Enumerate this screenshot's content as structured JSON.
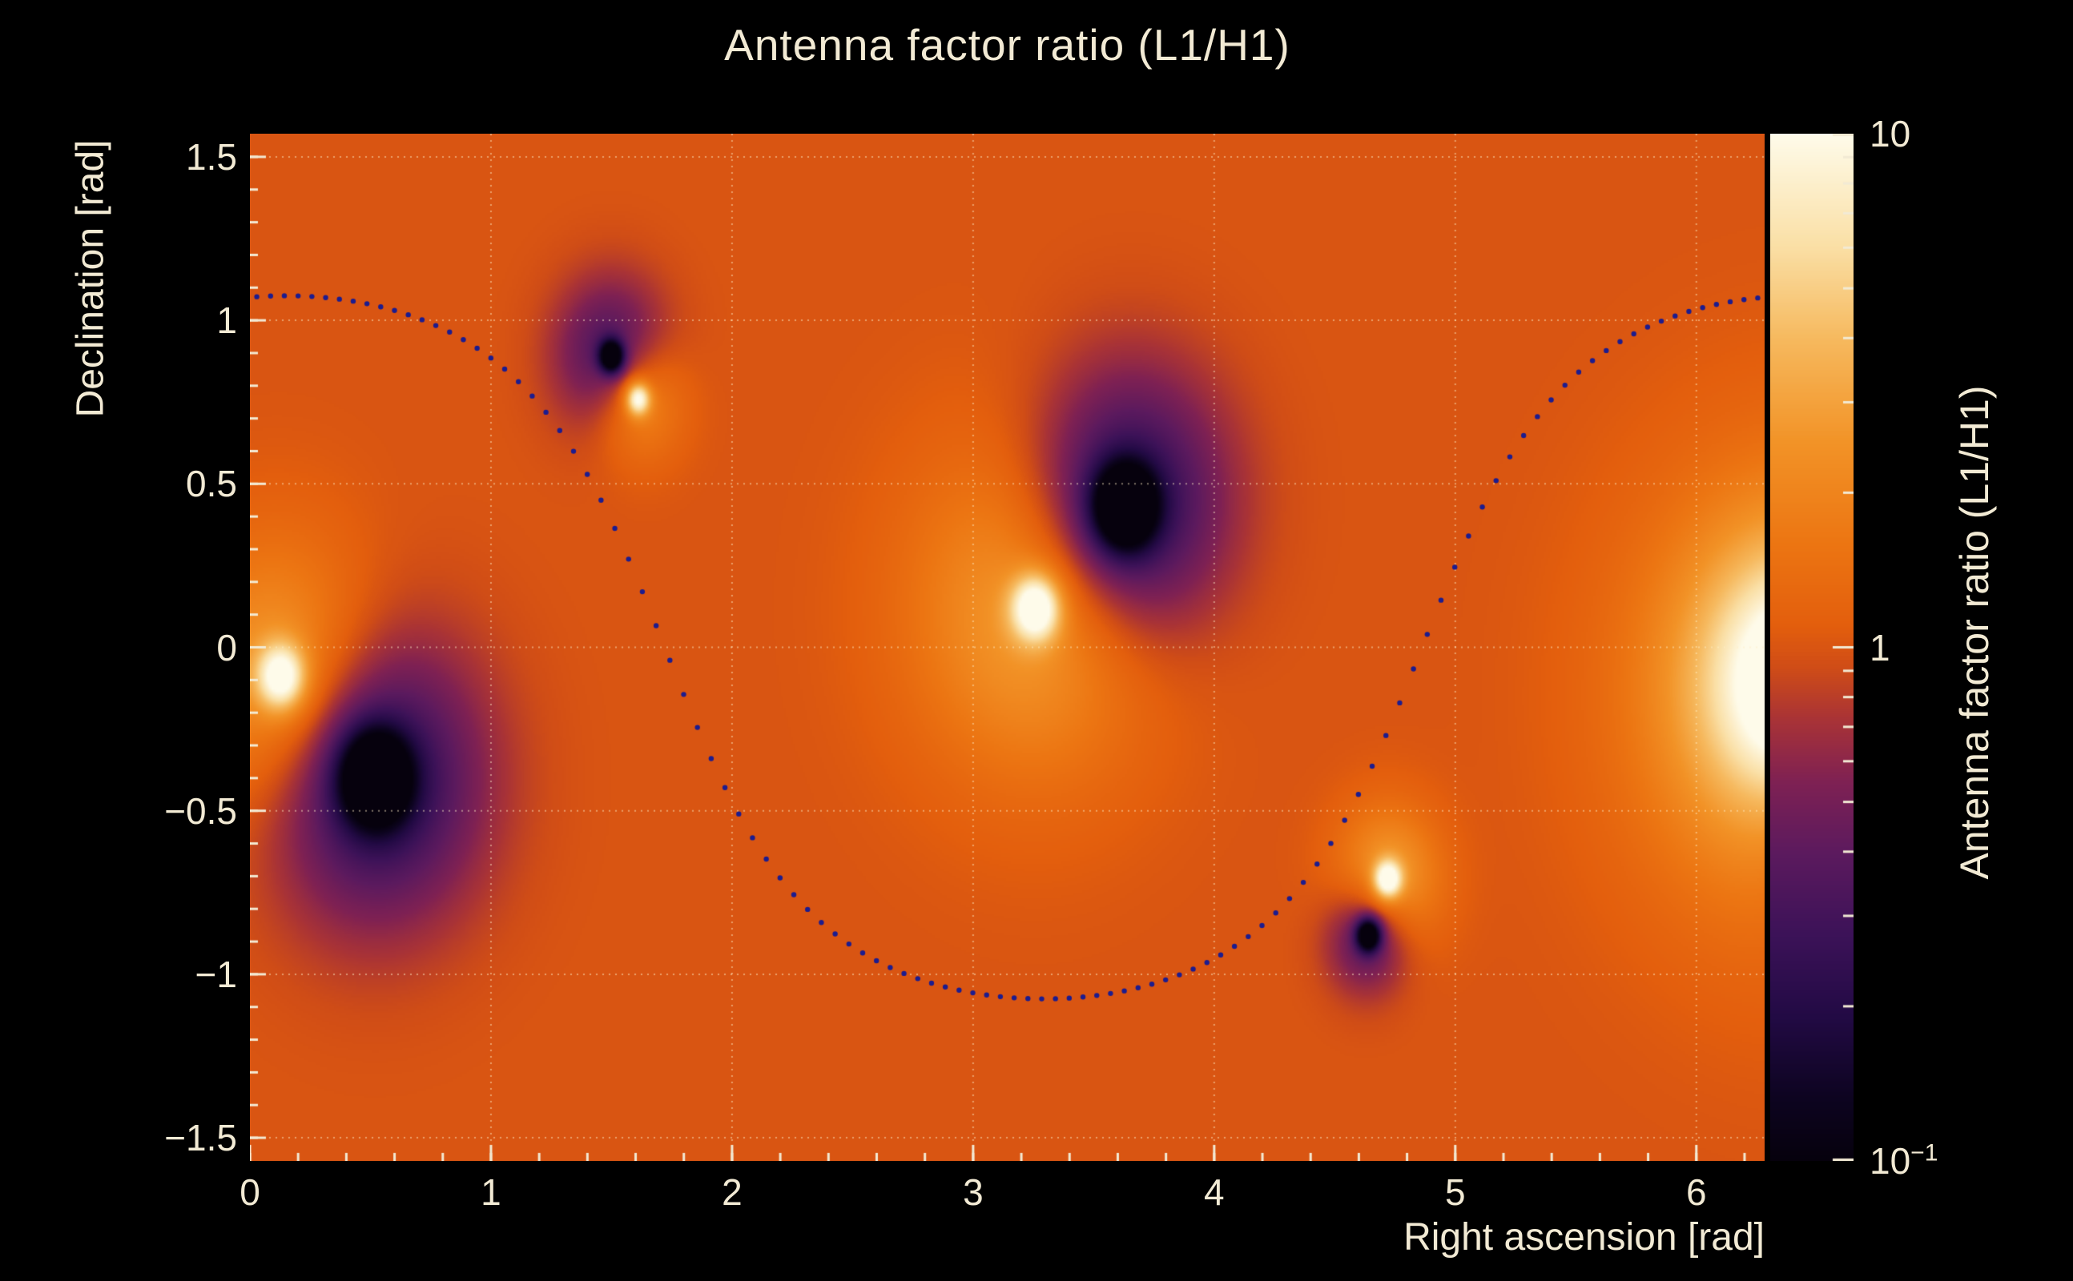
{
  "title": "Antenna factor ratio (L1/H1)",
  "x_axis": {
    "label": "Right ascension [rad]",
    "tick_values": [
      0,
      1,
      2,
      3,
      4,
      5,
      6
    ],
    "tick_labels": [
      "0",
      "1",
      "2",
      "3",
      "4",
      "5",
      "6"
    ],
    "minor_tick_step": 0.2
  },
  "y_axis": {
    "label": "Declination [rad]",
    "tick_values": [
      -1.5,
      -1,
      -0.5,
      0,
      0.5,
      1,
      1.5
    ],
    "tick_labels": [
      "−1.5",
      "−1",
      "−0.5",
      "0",
      "0.5",
      "1",
      "1.5"
    ],
    "minor_tick_step": 0.1
  },
  "colorbar": {
    "label": "Antenna factor ratio (L1/H1)",
    "scale": "log",
    "min": 0.1,
    "max": 10,
    "ticks": [
      {
        "value": 10,
        "base": "10",
        "exp": ""
      },
      {
        "value": 1,
        "base": "1",
        "exp": ""
      },
      {
        "value": 0.1,
        "base": "10",
        "exp": "−1"
      }
    ]
  },
  "chart_data": {
    "type": "heatmap",
    "title": "Antenna factor ratio (L1/H1)",
    "xlabel": "Right ascension [rad]",
    "ylabel": "Declination [rad]",
    "zlabel": "Antenna factor ratio (L1/H1)",
    "xlim": [
      0,
      6.2832
    ],
    "ylim": [
      -1.5708,
      1.5708
    ],
    "zlim": [
      0.1,
      10
    ],
    "zscale": "log",
    "grid_on": true,
    "base_value": 1.0,
    "description": "Sky map of the ratio of L1 to H1 antenna pattern magnitudes: uniform orange background near 1, with paired bright peaks (ratio up to 10) and dark nulls (ratio down to 0.1), plus a dotted dark-blue sinusoid-like track.",
    "features": [
      {
        "kind": "peak",
        "ra": 0.13,
        "dec": -0.09,
        "halo_amp": 0.5,
        "halo_sigma": 0.28,
        "core_amp": 0.9,
        "core_sigma": 0.07
      },
      {
        "kind": "null",
        "ra": 0.52,
        "dec": -0.4,
        "halo_amp": 0.75,
        "halo_sigma": 0.3,
        "core_amp": 1.2,
        "core_sigma": 0.1
      },
      {
        "kind": "null",
        "ra": 1.5,
        "dec": 0.89,
        "halo_amp": 0.55,
        "halo_sigma": 0.16,
        "core_amp": 1.1,
        "core_sigma": 0.035
      },
      {
        "kind": "peak",
        "ra": 1.61,
        "dec": 0.76,
        "halo_amp": 0.45,
        "halo_sigma": 0.13,
        "core_amp": 0.9,
        "core_sigma": 0.035
      },
      {
        "kind": "peak",
        "ra": 3.26,
        "dec": 0.12,
        "halo_amp": 0.5,
        "halo_sigma": 0.35,
        "core_amp": 1.0,
        "core_sigma": 0.07
      },
      {
        "kind": "null",
        "ra": 3.63,
        "dec": 0.43,
        "halo_amp": 0.8,
        "halo_sigma": 0.28,
        "core_amp": 1.2,
        "core_sigma": 0.09
      },
      {
        "kind": "peak",
        "ra": 4.72,
        "dec": -0.71,
        "halo_amp": 0.5,
        "halo_sigma": 0.15,
        "core_amp": 0.95,
        "core_sigma": 0.04
      },
      {
        "kind": "null",
        "ra": 4.64,
        "dec": -0.88,
        "halo_amp": 0.55,
        "halo_sigma": 0.12,
        "core_amp": 1.1,
        "core_sigma": 0.035
      },
      {
        "kind": "peak",
        "ra": 6.45,
        "dec": -0.15,
        "halo_amp": 0.7,
        "halo_sigma": 0.45,
        "core_amp": 0.4,
        "core_sigma": 0.2,
        "wrap": false
      }
    ],
    "overlay_curve": {
      "style": "dotted",
      "model": "dec = atan(amplitude * cos(ra - phase))",
      "amplitude": 1.85,
      "phase": 0.15,
      "n_dots": 110,
      "dot_radius": 3.2,
      "color": "#1c1c8f"
    },
    "grid": {
      "color": "#ffefc8",
      "opacity": 0.5,
      "dash": [
        2,
        6
      ]
    },
    "colormap": [
      {
        "t": 0.0,
        "color": "#06010d"
      },
      {
        "t": 0.06,
        "color": "#0d0420"
      },
      {
        "t": 0.14,
        "color": "#220a44"
      },
      {
        "t": 0.22,
        "color": "#3c1258"
      },
      {
        "t": 0.3,
        "color": "#5c1a5e"
      },
      {
        "t": 0.37,
        "color": "#7f2153"
      },
      {
        "t": 0.43,
        "color": "#a93336"
      },
      {
        "t": 0.48,
        "color": "#cf4c17"
      },
      {
        "t": 0.52,
        "color": "#e35e0d"
      },
      {
        "t": 0.6,
        "color": "#ec7512"
      },
      {
        "t": 0.7,
        "color": "#f29327"
      },
      {
        "t": 0.8,
        "color": "#f6b95e"
      },
      {
        "t": 0.89,
        "color": "#fadfa5"
      },
      {
        "t": 1.0,
        "color": "#fefbea"
      }
    ],
    "frame_color": "#f2ead4",
    "text_color": "#f2ead4",
    "background": "#000000"
  }
}
